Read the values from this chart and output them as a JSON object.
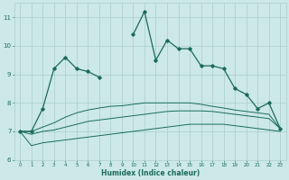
{
  "xlabel": "Humidex (Indice chaleur)",
  "x_values": [
    0,
    1,
    2,
    3,
    4,
    5,
    6,
    7,
    8,
    9,
    10,
    11,
    12,
    13,
    14,
    15,
    16,
    17,
    18,
    19,
    20,
    21,
    22,
    23
  ],
  "line1": [
    7.0,
    7.0,
    7.8,
    9.2,
    9.6,
    9.2,
    9.1,
    8.9,
    null,
    null,
    10.4,
    11.2,
    9.5,
    10.2,
    9.9,
    9.9,
    9.3,
    9.3,
    9.2,
    8.5,
    8.3,
    7.8,
    8.0,
    7.1
  ],
  "line_lower": [
    7.0,
    6.5,
    6.6,
    6.65,
    6.7,
    6.75,
    6.8,
    6.85,
    6.9,
    6.95,
    7.0,
    7.05,
    7.1,
    7.15,
    7.2,
    7.25,
    7.25,
    7.25,
    7.25,
    7.2,
    7.15,
    7.1,
    7.05,
    7.0
  ],
  "line_mid": [
    7.0,
    6.9,
    7.0,
    7.05,
    7.15,
    7.25,
    7.35,
    7.4,
    7.45,
    7.5,
    7.55,
    7.6,
    7.65,
    7.7,
    7.72,
    7.72,
    7.72,
    7.7,
    7.65,
    7.6,
    7.55,
    7.5,
    7.45,
    7.1
  ],
  "line_upper": [
    7.0,
    7.0,
    7.15,
    7.3,
    7.5,
    7.65,
    7.75,
    7.82,
    7.88,
    7.9,
    7.95,
    8.0,
    8.0,
    8.0,
    8.0,
    8.0,
    7.95,
    7.88,
    7.82,
    7.75,
    7.7,
    7.65,
    7.6,
    7.1
  ],
  "bg_color": "#cce8e8",
  "line_color": "#1a6b5a",
  "grid_color": "#aacece",
  "ylim": [
    6.0,
    11.5
  ],
  "xlim": [
    -0.5,
    23.5
  ],
  "yticks": [
    6,
    7,
    8,
    9,
    10,
    11
  ],
  "xticks": [
    0,
    1,
    2,
    3,
    4,
    5,
    6,
    7,
    8,
    9,
    10,
    11,
    12,
    13,
    14,
    15,
    16,
    17,
    18,
    19,
    20,
    21,
    22,
    23
  ]
}
